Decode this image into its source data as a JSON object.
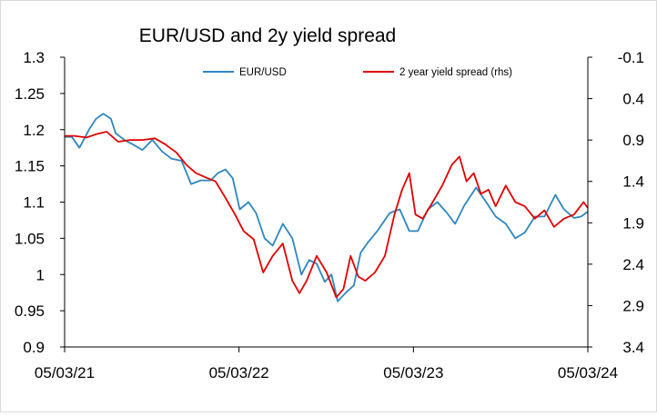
{
  "chart_data": {
    "type": "line",
    "title": "EUR/USD and 2y yield spread",
    "x_tick_labels": [
      "05/03/21",
      "05/03/22",
      "05/03/23",
      "05/03/24"
    ],
    "y_left": {
      "ylim": [
        0.9,
        1.3
      ],
      "ticks": [
        1.3,
        1.25,
        1.2,
        1.15,
        1.1,
        1.05,
        1,
        0.95,
        0.9
      ],
      "tick_labels": [
        "1.3",
        "1.25",
        "1.2",
        "1.15",
        "1.1",
        "1.05",
        "1",
        "0.95",
        "0.9"
      ]
    },
    "y_right": {
      "inverted": true,
      "ylim": [
        -0.1,
        3.4
      ],
      "ticks": [
        -0.1,
        0.4,
        0.9,
        1.4,
        1.9,
        2.4,
        2.9,
        3.4
      ],
      "tick_labels": [
        "-0.1",
        "0.4",
        "0.9",
        "1.4",
        "1.9",
        "2.4",
        "2.9",
        "3.4"
      ]
    },
    "x_range": [
      "2021-03-05",
      "2024-03-05"
    ],
    "grid": false,
    "legend_position": "top",
    "series": [
      {
        "name": "EUR/USD",
        "axis": "left",
        "color": "#2E86C1",
        "points": [
          [
            "2021-03-05",
            1.19
          ],
          [
            "2021-03-20",
            1.19
          ],
          [
            "2021-04-05",
            1.175
          ],
          [
            "2021-04-25",
            1.2
          ],
          [
            "2021-05-10",
            1.215
          ],
          [
            "2021-05-25",
            1.222
          ],
          [
            "2021-06-10",
            1.215
          ],
          [
            "2021-06-20",
            1.195
          ],
          [
            "2021-07-10",
            1.185
          ],
          [
            "2021-07-25",
            1.18
          ],
          [
            "2021-08-15",
            1.172
          ],
          [
            "2021-09-05",
            1.186
          ],
          [
            "2021-09-25",
            1.17
          ],
          [
            "2021-10-15",
            1.16
          ],
          [
            "2021-11-05",
            1.157
          ],
          [
            "2021-11-25",
            1.125
          ],
          [
            "2021-12-15",
            1.13
          ],
          [
            "2022-01-05",
            1.13
          ],
          [
            "2022-01-20",
            1.14
          ],
          [
            "2022-02-05",
            1.145
          ],
          [
            "2022-02-20",
            1.133
          ],
          [
            "2022-03-07",
            1.09
          ],
          [
            "2022-03-25",
            1.1
          ],
          [
            "2022-04-10",
            1.085
          ],
          [
            "2022-04-28",
            1.05
          ],
          [
            "2022-05-15",
            1.04
          ],
          [
            "2022-06-05",
            1.07
          ],
          [
            "2022-06-25",
            1.05
          ],
          [
            "2022-07-14",
            1.0
          ],
          [
            "2022-07-30",
            1.02
          ],
          [
            "2022-08-15",
            1.015
          ],
          [
            "2022-09-01",
            0.99
          ],
          [
            "2022-09-15",
            1.0
          ],
          [
            "2022-09-28",
            0.963
          ],
          [
            "2022-10-15",
            0.975
          ],
          [
            "2022-11-01",
            0.985
          ],
          [
            "2022-11-15",
            1.03
          ],
          [
            "2022-12-01",
            1.045
          ],
          [
            "2022-12-20",
            1.06
          ],
          [
            "2023-01-15",
            1.085
          ],
          [
            "2023-02-05",
            1.09
          ],
          [
            "2023-02-25",
            1.06
          ],
          [
            "2023-03-15",
            1.06
          ],
          [
            "2023-04-05",
            1.09
          ],
          [
            "2023-04-25",
            1.1
          ],
          [
            "2023-05-15",
            1.085
          ],
          [
            "2023-06-01",
            1.07
          ],
          [
            "2023-06-20",
            1.095
          ],
          [
            "2023-07-15",
            1.12
          ],
          [
            "2023-08-05",
            1.1
          ],
          [
            "2023-08-25",
            1.08
          ],
          [
            "2023-09-15",
            1.07
          ],
          [
            "2023-10-05",
            1.05
          ],
          [
            "2023-10-25",
            1.058
          ],
          [
            "2023-11-15",
            1.08
          ],
          [
            "2023-12-05",
            1.08
          ],
          [
            "2023-12-28",
            1.11
          ],
          [
            "2024-01-15",
            1.09
          ],
          [
            "2024-02-05",
            1.078
          ],
          [
            "2024-02-20",
            1.08
          ],
          [
            "2024-03-05",
            1.087
          ]
        ]
      },
      {
        "name": "2 year yield spread (rhs)",
        "axis": "right",
        "color": "#E00000",
        "points": [
          [
            "2021-03-05",
            0.85
          ],
          [
            "2021-03-25",
            0.85
          ],
          [
            "2021-04-20",
            0.87
          ],
          [
            "2021-05-10",
            0.83
          ],
          [
            "2021-06-01",
            0.8
          ],
          [
            "2021-06-25",
            0.92
          ],
          [
            "2021-07-20",
            0.9
          ],
          [
            "2021-08-15",
            0.9
          ],
          [
            "2021-09-10",
            0.88
          ],
          [
            "2021-10-01",
            0.95
          ],
          [
            "2021-10-25",
            1.05
          ],
          [
            "2021-11-15",
            1.2
          ],
          [
            "2021-12-05",
            1.3
          ],
          [
            "2021-12-25",
            1.35
          ],
          [
            "2022-01-15",
            1.4
          ],
          [
            "2022-02-05",
            1.6
          ],
          [
            "2022-02-25",
            1.8
          ],
          [
            "2022-03-15",
            2.0
          ],
          [
            "2022-04-05",
            2.1
          ],
          [
            "2022-04-25",
            2.5
          ],
          [
            "2022-05-15",
            2.3
          ],
          [
            "2022-06-05",
            2.15
          ],
          [
            "2022-06-25",
            2.6
          ],
          [
            "2022-07-10",
            2.75
          ],
          [
            "2022-07-25",
            2.6
          ],
          [
            "2022-08-15",
            2.3
          ],
          [
            "2022-09-05",
            2.5
          ],
          [
            "2022-09-25",
            2.8
          ],
          [
            "2022-10-10",
            2.7
          ],
          [
            "2022-10-25",
            2.3
          ],
          [
            "2022-11-10",
            2.55
          ],
          [
            "2022-11-25",
            2.6
          ],
          [
            "2022-12-15",
            2.5
          ],
          [
            "2023-01-05",
            2.3
          ],
          [
            "2023-01-25",
            1.8
          ],
          [
            "2023-02-10",
            1.5
          ],
          [
            "2023-02-25",
            1.3
          ],
          [
            "2023-03-10",
            1.8
          ],
          [
            "2023-03-25",
            1.85
          ],
          [
            "2023-04-15",
            1.65
          ],
          [
            "2023-05-05",
            1.45
          ],
          [
            "2023-05-25",
            1.2
          ],
          [
            "2023-06-10",
            1.1
          ],
          [
            "2023-06-25",
            1.4
          ],
          [
            "2023-07-10",
            1.3
          ],
          [
            "2023-07-25",
            1.55
          ],
          [
            "2023-08-10",
            1.5
          ],
          [
            "2023-08-25",
            1.7
          ],
          [
            "2023-09-15",
            1.45
          ],
          [
            "2023-10-05",
            1.65
          ],
          [
            "2023-10-25",
            1.7
          ],
          [
            "2023-11-15",
            1.85
          ],
          [
            "2023-12-05",
            1.75
          ],
          [
            "2023-12-25",
            1.95
          ],
          [
            "2024-01-15",
            1.85
          ],
          [
            "2024-02-05",
            1.8
          ],
          [
            "2024-02-25",
            1.65
          ],
          [
            "2024-03-05",
            1.72
          ]
        ]
      }
    ]
  }
}
